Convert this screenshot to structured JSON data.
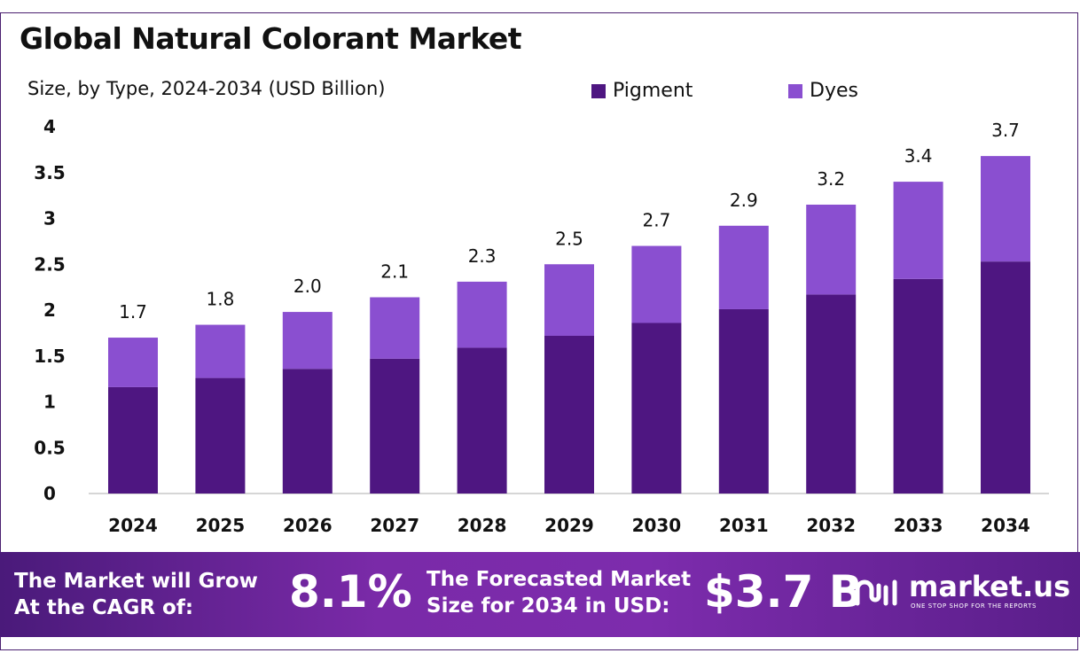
{
  "title": "Global Natural Colorant Market",
  "subtitle": "Size, by Type, 2024-2034 (USD Billion)",
  "colors": {
    "pigment": "#4e1681",
    "dyes": "#8a4fd0",
    "footer_start": "#4a1a7a",
    "footer_end": "#7d2cad"
  },
  "chart_data": {
    "type": "bar",
    "stacked": true,
    "categories": [
      "2024",
      "2025",
      "2026",
      "2027",
      "2028",
      "2029",
      "2030",
      "2031",
      "2032",
      "2033",
      "2034"
    ],
    "series": [
      {
        "name": "Pigment",
        "values": [
          1.16,
          1.26,
          1.36,
          1.47,
          1.59,
          1.72,
          1.86,
          2.01,
          2.17,
          2.34,
          2.53
        ]
      },
      {
        "name": "Dyes",
        "values": [
          0.54,
          0.58,
          0.62,
          0.67,
          0.72,
          0.78,
          0.84,
          0.91,
          0.98,
          1.06,
          1.15
        ]
      }
    ],
    "totals": [
      "1.7",
      "1.8",
      "2.0",
      "2.1",
      "2.3",
      "2.5",
      "2.7",
      "2.9",
      "3.2",
      "3.4",
      "3.7"
    ],
    "yticks": [
      "0",
      "0.5",
      "1",
      "1.5",
      "2",
      "2.5",
      "3",
      "3.5",
      "4"
    ],
    "ylim": [
      0,
      4
    ],
    "grid": false,
    "legend": "top-right"
  },
  "footer": {
    "cagr_label_line1": "The Market will Grow",
    "cagr_label_line2": "At the CAGR of:",
    "cagr_value": "8.1%",
    "forecast_label_line1": "The Forecasted Market",
    "forecast_label_line2": "Size for 2034 in USD:",
    "forecast_value": "$3.7 B",
    "brand": "market.us",
    "tagline": "ONE STOP SHOP FOR THE REPORTS"
  }
}
